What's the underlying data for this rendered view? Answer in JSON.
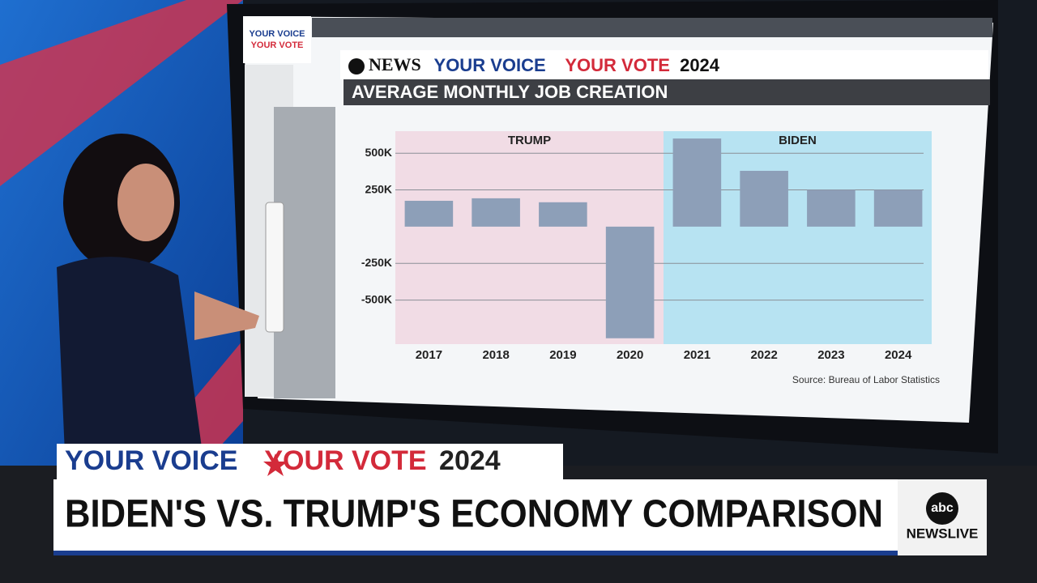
{
  "screen_logo": {
    "line1": "YOUR VOICE",
    "line2": "YOUR VOTE"
  },
  "chart_data": {
    "type": "bar",
    "brand": {
      "network": "NEWS",
      "voice": "YOUR VOICE",
      "vote": "YOUR VOTE",
      "year": "2024"
    },
    "title": "AVERAGE MONTHLY JOB CREATION",
    "categories": [
      "2017",
      "2018",
      "2019",
      "2020",
      "2021",
      "2022",
      "2023",
      "2024"
    ],
    "values": [
      176000,
      193000,
      166000,
      -760000,
      600000,
      380000,
      250000,
      250000
    ],
    "color": "#8d9fb8",
    "regions": [
      {
        "label": "TRUMP",
        "start": "2017",
        "end": "2020",
        "color": "#f1dce5"
      },
      {
        "label": "BIDEN",
        "start": "2021",
        "end": "2024",
        "color": "#b7e3f2"
      }
    ],
    "ylim": [
      -800000,
      650000
    ],
    "yticks": [
      {
        "value": 500000,
        "label": "500K"
      },
      {
        "value": 250000,
        "label": "250K"
      },
      {
        "value": -250000,
        "label": "-250K"
      },
      {
        "value": -500000,
        "label": "-500K"
      }
    ],
    "grid": true,
    "source": "Source: Bureau of Labor Statistics"
  },
  "lower_third": {
    "voice": "YOUR VOICE",
    "vote": "YOUR VOTE",
    "year": "2024",
    "headline": "BIDEN'S VS. TRUMP'S ECONOMY COMPARISON",
    "logo": "abc",
    "network": "NEWSLIVE"
  }
}
